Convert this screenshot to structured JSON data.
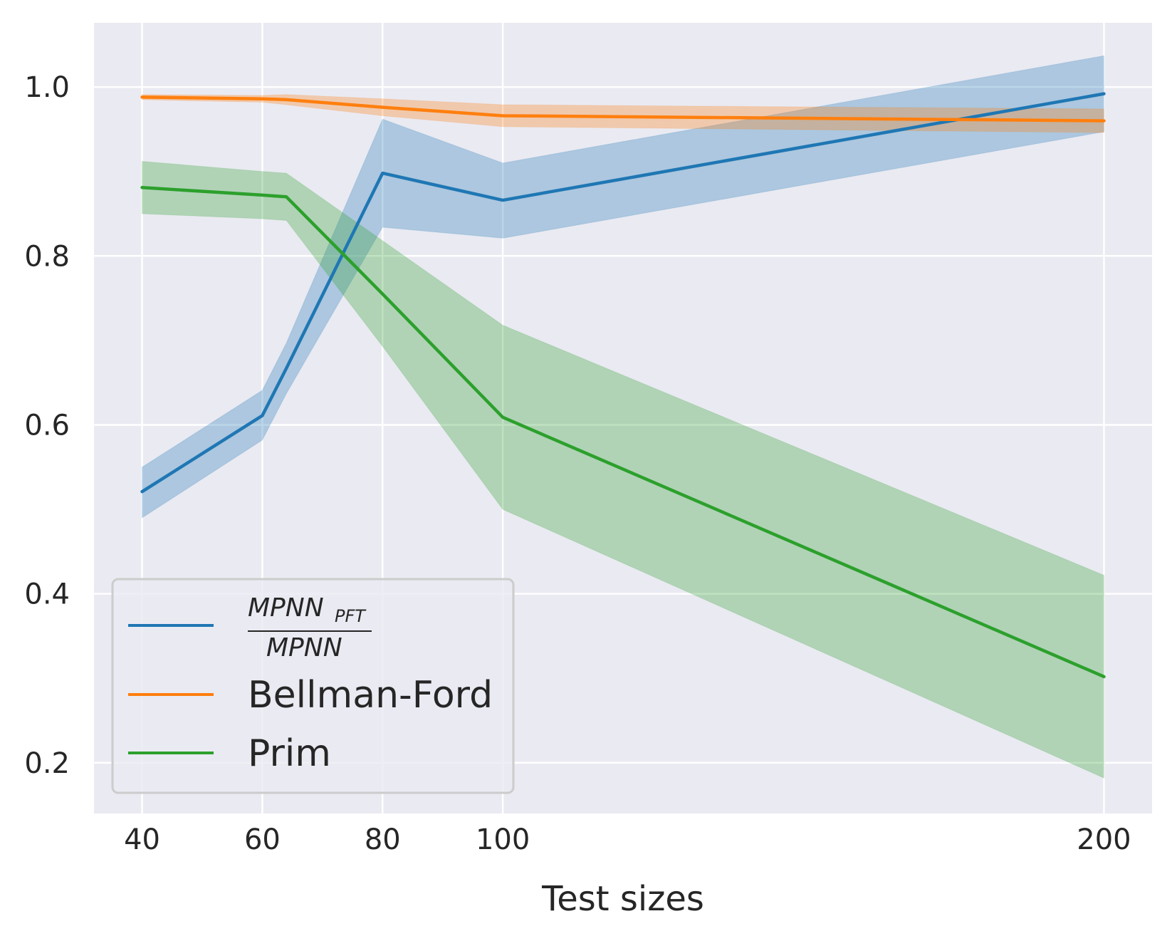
{
  "chart_data": {
    "type": "line",
    "xlabel": "Test sizes",
    "ylabel": "",
    "x_ticks": [
      40,
      60,
      80,
      100,
      200
    ],
    "y_ticks": [
      0.2,
      0.4,
      0.6,
      0.8,
      1.0
    ],
    "y_tick_labels": [
      "0.2",
      "0.4",
      "0.6",
      "0.8",
      "1.0"
    ],
    "xlim": [
      32,
      208
    ],
    "ylim": [
      0.14,
      1.076
    ],
    "grid": true,
    "legend_position": "lower-left",
    "series": [
      {
        "name": "MPNN_PFT / MPNN",
        "legend_numerator": "MPNN",
        "legend_numerator_sub": "PFT",
        "legend_denominator": "MPNN",
        "color": "#1f77b4",
        "x": [
          40,
          60,
          64,
          80,
          100,
          200
        ],
        "y": [
          0.521,
          0.611,
          0.667,
          0.898,
          0.866,
          0.992
        ],
        "lower": [
          0.49,
          0.582,
          0.637,
          0.834,
          0.821,
          0.947
        ],
        "upper": [
          0.55,
          0.641,
          0.697,
          0.962,
          0.91,
          1.037
        ]
      },
      {
        "name": "Bellman-Ford",
        "color": "#ff7f0e",
        "x": [
          40,
          60,
          64,
          80,
          100,
          200
        ],
        "y": [
          0.988,
          0.986,
          0.985,
          0.976,
          0.966,
          0.96
        ],
        "lower": [
          0.985,
          0.982,
          0.979,
          0.966,
          0.953,
          0.946
        ],
        "upper": [
          0.991,
          0.99,
          0.991,
          0.986,
          0.979,
          0.974
        ]
      },
      {
        "name": "Prim",
        "color": "#2ca02c",
        "x": [
          40,
          60,
          64,
          80,
          100,
          200
        ],
        "y": [
          0.881,
          0.872,
          0.87,
          0.755,
          0.609,
          0.302
        ],
        "lower": [
          0.85,
          0.844,
          0.842,
          0.693,
          0.5,
          0.182
        ],
        "upper": [
          0.912,
          0.9,
          0.898,
          0.818,
          0.718,
          0.422
        ]
      }
    ]
  }
}
